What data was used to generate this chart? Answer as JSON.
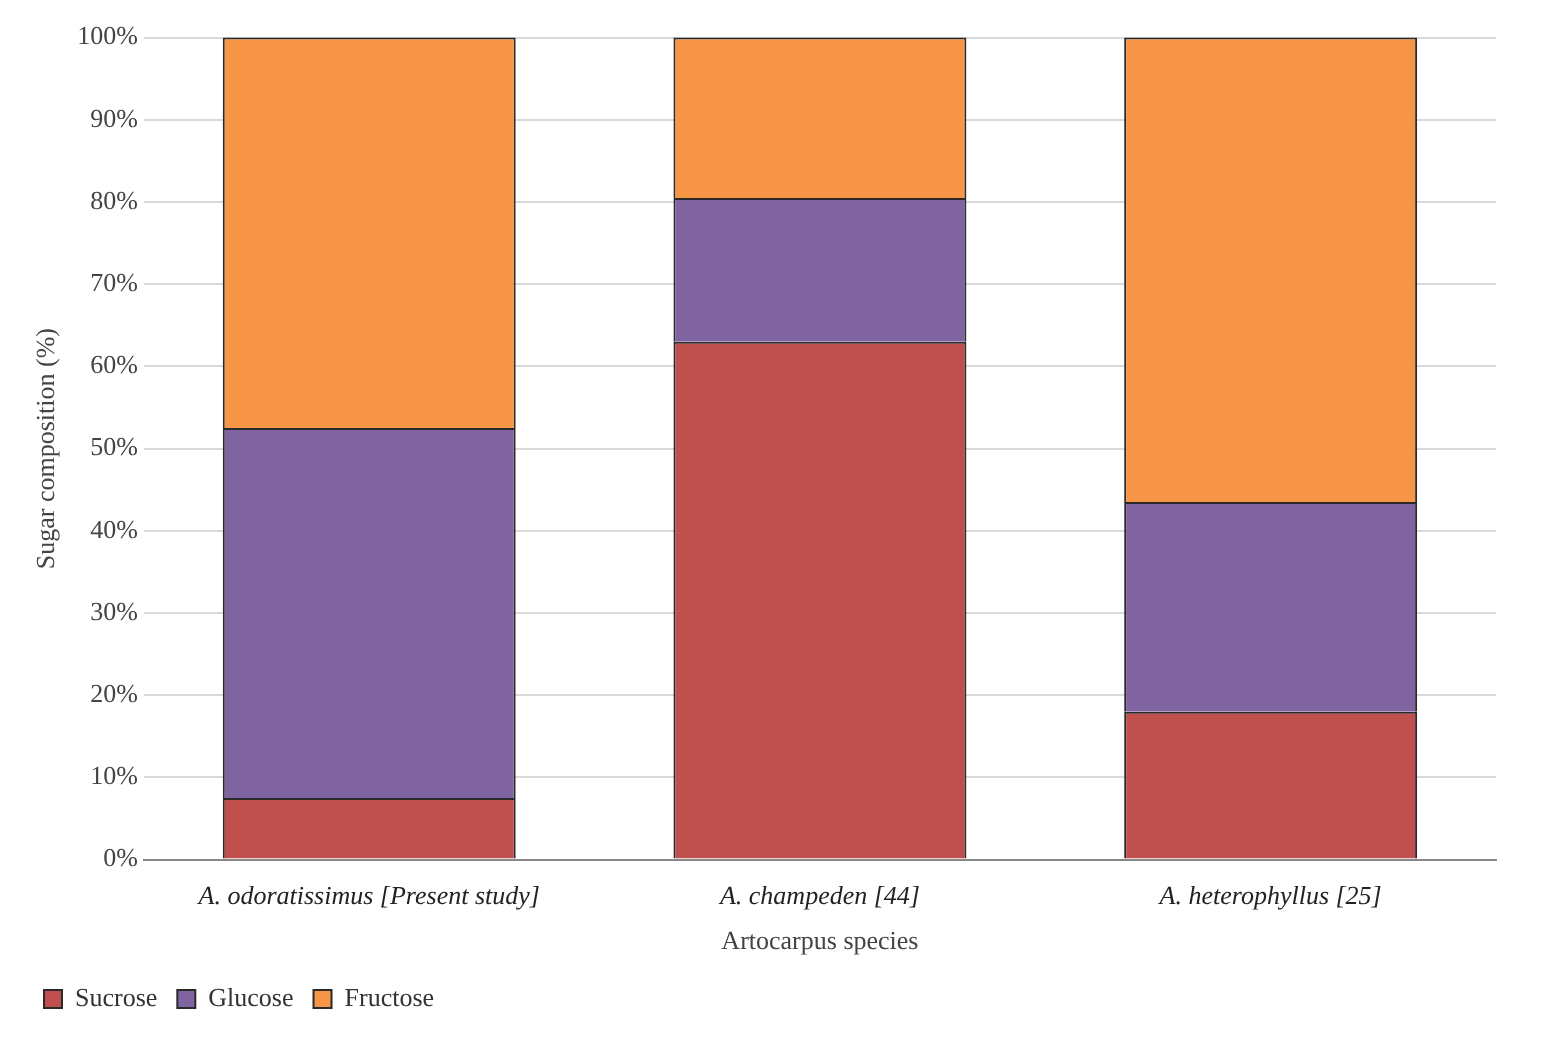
{
  "chart_data": {
    "type": "bar",
    "stacked": true,
    "xlabel": "Artocarpus species",
    "ylabel": "Sugar composition (%)",
    "categories": [
      "A. odoratissimus [Present study]",
      "A. champeden [44]",
      "A. heterophyllus [25]"
    ],
    "series": [
      {
        "name": "Sucrose",
        "color": "#c0504d",
        "values": [
          7.5,
          63,
          18
        ]
      },
      {
        "name": "Glucose",
        "color": "#8064a2",
        "values": [
          45,
          17.5,
          25.5
        ]
      },
      {
        "name": "Fructose",
        "color": "#f79646",
        "values": [
          47.5,
          19.5,
          56.5
        ]
      }
    ],
    "ylim": [
      0,
      100
    ],
    "yticks": [
      {
        "value": 0,
        "label": "0%"
      },
      {
        "value": 10,
        "label": "10%"
      },
      {
        "value": 20,
        "label": "20%"
      },
      {
        "value": 30,
        "label": "30%"
      },
      {
        "value": 40,
        "label": "40%"
      },
      {
        "value": 50,
        "label": "50%"
      },
      {
        "value": 60,
        "label": "60%"
      },
      {
        "value": 70,
        "label": "70%"
      },
      {
        "value": 80,
        "label": "80%"
      },
      {
        "value": 90,
        "label": "90%"
      },
      {
        "value": 100,
        "label": "100%"
      }
    ],
    "grid": "y",
    "legend": "bottom left"
  }
}
